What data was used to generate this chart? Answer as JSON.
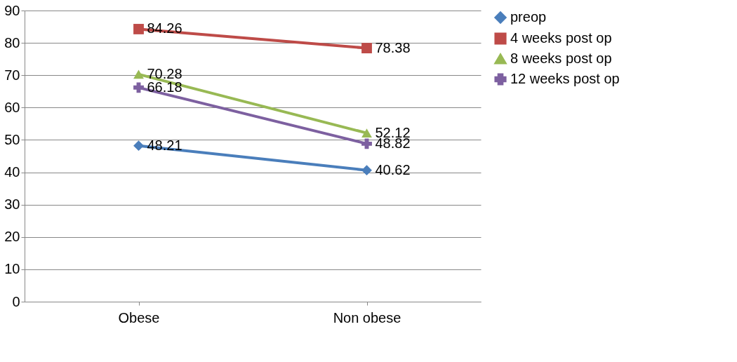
{
  "chart_data": {
    "type": "line",
    "categories": [
      "Obese",
      "Non obese"
    ],
    "series": [
      {
        "name": "preop",
        "color": "#4a7ebb",
        "marker": "diamond",
        "values": [
          48.21,
          40.62
        ]
      },
      {
        "name": "4 weeks post op",
        "color": "#be4b48",
        "marker": "square",
        "values": [
          84.26,
          78.38
        ]
      },
      {
        "name": "8 weeks post op",
        "color": "#98b954",
        "marker": "triangle",
        "values": [
          70.28,
          52.12
        ]
      },
      {
        "name": "12 weeks post op",
        "color": "#7d60a0",
        "marker": "cross",
        "values": [
          66.18,
          48.82
        ]
      }
    ],
    "ylim": [
      0,
      90
    ],
    "yticks": [
      0,
      10,
      20,
      30,
      40,
      50,
      60,
      70,
      80,
      90
    ],
    "grid": "y",
    "legend": "right",
    "data_labels": true
  }
}
